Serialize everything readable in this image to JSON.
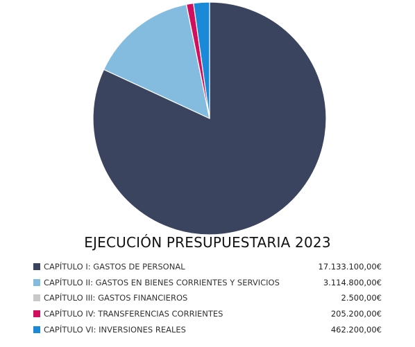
{
  "chart_data": {
    "type": "pie",
    "title": "EJECUCIÓN PRESUPUESTARIA 2023",
    "legend_position": "bottom",
    "categories": [
      "CAPÍTULO I: GASTOS DE PERSONAL",
      "CAPÍTULO II: GASTOS EN BIENES CORRIENTES Y SERVICIOS",
      "CAPÍTULO III: GASTOS FINANCIEROS",
      "CAPÍTULO IV: TRANSFERENCIAS CORRIENTES",
      "CAPÍTULO VI: INVERSIONES REALES"
    ],
    "values": [
      17133100.0,
      3114800.0,
      2500.0,
      205200.0,
      462200.0
    ],
    "value_labels": [
      "17.133.100,00€",
      "3.114.800,00€",
      "2.500,00€",
      "205.200,00€",
      "462.200,00€"
    ],
    "colors": [
      "#3b445f",
      "#84bcdf",
      "#c9c9c9",
      "#d0105f",
      "#1a8ad8"
    ]
  }
}
